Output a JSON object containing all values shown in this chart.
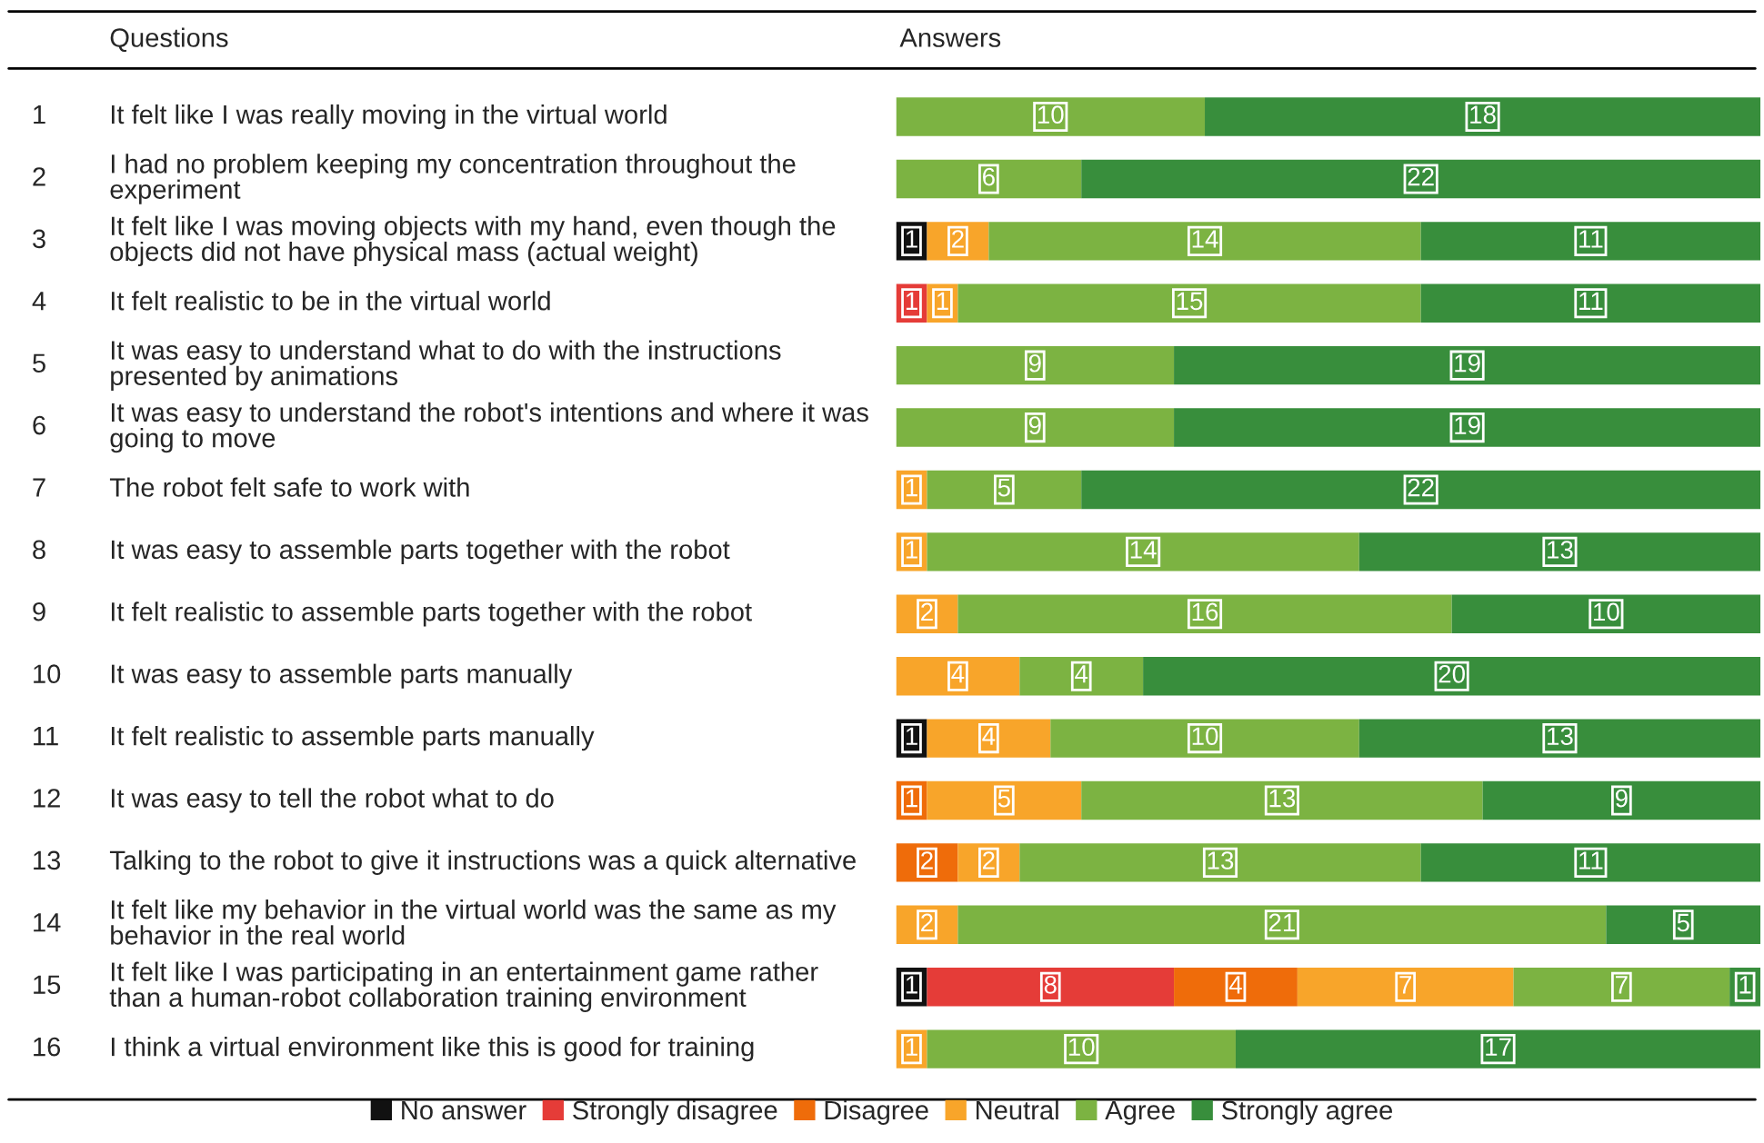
{
  "chart_data": {
    "type": "bar",
    "orientation": "horizontal",
    "stacked": true,
    "data_labels": true,
    "legend": "bottom",
    "categories": [
      "It felt like I was really moving in the virtual world",
      "I had no problem keeping my concentration throughout the experiment",
      "It felt like I was moving objects with my hand, even though the objects did not have physical mass (actual weight)",
      "It felt realistic to be in the virtual world",
      "It was easy to understand what to do with the instructions presented by animations",
      "It was easy to understand the robot's intentions and where it was going to move",
      "The robot felt safe to work with",
      "It was easy to assemble parts together with the robot",
      "It felt realistic to assemble parts together with the robot",
      "It was easy to assemble parts manually",
      "It felt realistic to assemble parts manually",
      "It was easy to tell the robot what to do",
      "Talking to the robot to give it instructions was a quick alternative",
      "It felt like my behavior in the virtual world was the same as my behavior in the real world",
      "It felt like I was participating in an entertainment game rather than a human-robot collaboration training environment",
      "I think a virtual environment like this is good for training"
    ],
    "annotations": [
      "Questions",
      "Answers",
      "1",
      "2",
      "3",
      "4",
      "5",
      "6",
      "7",
      "8",
      "9",
      "10",
      "11",
      "12",
      "13",
      "14",
      "15",
      "16"
    ],
    "series": [
      {
        "name": "No answer",
        "color": "#111111",
        "values": [
          null,
          null,
          1,
          null,
          null,
          null,
          null,
          null,
          null,
          null,
          1,
          null,
          null,
          null,
          1,
          null
        ]
      },
      {
        "name": "Strongly disagree",
        "color": "#e53c38",
        "values": [
          null,
          null,
          null,
          1,
          null,
          null,
          null,
          null,
          null,
          null,
          null,
          null,
          null,
          null,
          8,
          null
        ]
      },
      {
        "name": "Disagree",
        "color": "#ef6c0a",
        "values": [
          null,
          null,
          null,
          null,
          null,
          null,
          null,
          null,
          null,
          null,
          null,
          1,
          2,
          null,
          4,
          null
        ]
      },
      {
        "name": "Neutral",
        "color": "#f8a52a",
        "values": [
          null,
          null,
          2,
          1,
          null,
          null,
          1,
          1,
          2,
          4,
          4,
          5,
          2,
          2,
          7,
          1
        ]
      },
      {
        "name": "Agree",
        "color": "#7cb342",
        "values": [
          10,
          6,
          14,
          15,
          9,
          9,
          5,
          14,
          16,
          4,
          10,
          13,
          13,
          21,
          7,
          10
        ]
      },
      {
        "name": "Strongly agree",
        "color": "#388e3c",
        "values": [
          18,
          22,
          11,
          11,
          19,
          19,
          22,
          13,
          10,
          20,
          13,
          9,
          11,
          5,
          1,
          17
        ]
      }
    ]
  }
}
